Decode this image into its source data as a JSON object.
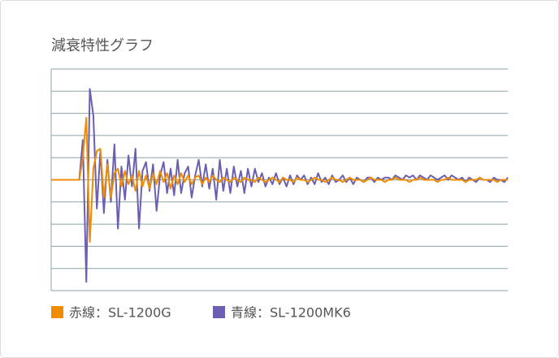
{
  "chart_data": {
    "type": "line",
    "title": "減衰特性グラフ",
    "ylim": [
      -5,
      5
    ],
    "yticks": [
      -5,
      -4,
      -3,
      -2,
      -1,
      0,
      1,
      2,
      3,
      4,
      5
    ],
    "grid": true,
    "series": [
      {
        "name": "赤線：SL-1200G",
        "color": "#f08c00",
        "values": [
          0,
          0,
          0,
          0,
          0,
          0,
          0,
          0,
          0,
          1.0,
          2.8,
          -2.8,
          0.5,
          1.3,
          1.4,
          -0.8,
          0.7,
          -0.8,
          0.3,
          0.5,
          -0.3,
          0.4,
          -0.2,
          0.2,
          -0.5,
          0.4,
          -0.3,
          0.2,
          -0.4,
          0.3,
          -0.2,
          0.4,
          -0.1,
          0.3,
          -0.4,
          0.2,
          -0.2,
          0.3,
          -0.1,
          0.2,
          -0.2,
          0.1,
          0.2,
          -0.2,
          0.1,
          -0.1,
          0.2,
          0,
          -0.1,
          0.1,
          0,
          -0.1,
          0.1,
          0,
          -0.1,
          0.1,
          0,
          0,
          -0.1,
          0.1,
          0,
          -0.1,
          0,
          0.1,
          0,
          -0.1,
          0.1,
          0,
          0,
          -0.1,
          0.1,
          0,
          0,
          -0.1,
          0,
          0.1,
          0,
          0,
          -0.1,
          0,
          0.1,
          0,
          0,
          -0.1,
          0,
          0.1,
          0,
          0,
          0,
          -0.1,
          0,
          0.1,
          0,
          0,
          0,
          -0.1,
          0,
          0,
          0.1,
          0,
          0,
          0,
          -0.1,
          0,
          0,
          0.1,
          0,
          0,
          0,
          0,
          -0.1,
          0,
          0,
          0.1,
          0,
          0,
          0,
          0,
          -0.1,
          0,
          0,
          0,
          0.1,
          0,
          0,
          0,
          0,
          -0.1,
          0,
          0,
          0
        ]
      },
      {
        "name": "青線：SL-1200MK6",
        "color": "#6a5fb0",
        "values": [
          0,
          0,
          0,
          0,
          0,
          0,
          0,
          0,
          0,
          1.8,
          -4.6,
          4.1,
          2.9,
          -1.3,
          1.3,
          -1.5,
          0.9,
          -1.0,
          1.6,
          -2.2,
          0.6,
          -0.9,
          1.1,
          -0.3,
          1.4,
          -2.2,
          0.4,
          0.8,
          -0.5,
          0.7,
          -1.4,
          0.2,
          0.8,
          -0.6,
          0.5,
          -0.7,
          0.9,
          -0.6,
          0.3,
          0.6,
          -0.8,
          0.2,
          0.9,
          -0.3,
          0.7,
          -0.4,
          0.5,
          -0.9,
          0.9,
          -0.5,
          0.5,
          -0.6,
          0.6,
          -0.3,
          0.4,
          -0.6,
          0.5,
          -0.3,
          0.5,
          -0.1,
          0.3,
          -0.3,
          0.1,
          -0.2,
          0.3,
          -0.2,
          0.1,
          -0.3,
          0.2,
          -0.2,
          0.2,
          0,
          0.2,
          -0.2,
          0.1,
          -0.2,
          0.3,
          -0.1,
          0.1,
          -0.2,
          0.2,
          -0.1,
          0,
          0.2,
          -0.1,
          0.1,
          -0.2,
          0.1,
          0,
          -0.1,
          0.1,
          0.1,
          -0.1,
          0.1,
          0,
          0.1,
          0.1,
          0,
          0.2,
          0.1,
          0,
          0.2,
          0.1,
          0.2,
          0,
          0.2,
          0.1,
          0,
          0.2,
          0.1,
          0,
          0.1,
          0.2,
          0,
          0.2,
          0.1,
          0,
          0.1,
          -0.1,
          0.1,
          0,
          -0.1,
          0.1,
          0,
          0,
          -0.1,
          0.1,
          0,
          0,
          -0.1,
          0.1
        ]
      }
    ]
  }
}
